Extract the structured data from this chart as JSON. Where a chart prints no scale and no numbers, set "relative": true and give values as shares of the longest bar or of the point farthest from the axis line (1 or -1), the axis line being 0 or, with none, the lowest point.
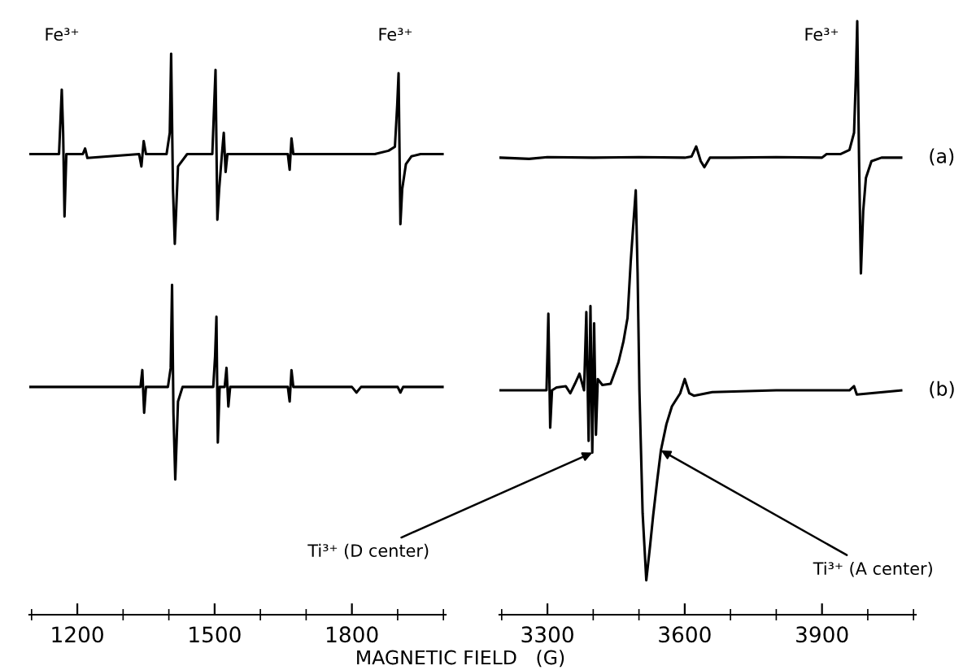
{
  "chart_data": [
    {
      "type": "line",
      "relative": true,
      "xlabel": "MAGNETIC FIELD   (G)",
      "tick_labels": "x",
      "xlim": [
        1095,
        2005
      ],
      "xticks": [
        {
          "value": 1100,
          "label": null
        },
        1200,
        {
          "value": 1300,
          "label": null
        },
        {
          "value": 1400,
          "label": null
        },
        1500,
        {
          "value": 1600,
          "label": null
        },
        {
          "value": 1700,
          "label": null
        },
        1800,
        {
          "value": 1900,
          "label": null
        },
        {
          "value": 2000,
          "label": null
        }
      ],
      "series": [
        {
          "color": "#000000",
          "x": [
            1095,
            1160,
            1166,
            1169,
            1172,
            1176,
            1185,
            1212,
            1217,
            1222,
            1335,
            1340,
            1345,
            1350,
            1395,
            1402,
            1405,
            1409,
            1413,
            1420,
            1440,
            1495,
            1499,
            1502,
            1506,
            1510,
            1516,
            1520,
            1524,
            1528,
            1660,
            1664,
            1668,
            1672,
            1850,
            1880,
            1894,
            1899,
            1902,
            1906,
            1910,
            1918,
            1930,
            1950,
            1998
          ],
          "values": [
            0.821,
            0.821,
            0.936,
            0.859,
            0.71,
            0.821,
            0.821,
            0.821,
            0.831,
            0.814,
            0.821,
            0.799,
            0.844,
            0.821,
            0.821,
            0.859,
            1.0,
            0.759,
            0.661,
            0.799,
            0.821,
            0.821,
            0.908,
            0.971,
            0.704,
            0.759,
            0.821,
            0.859,
            0.789,
            0.821,
            0.821,
            0.793,
            0.849,
            0.821,
            0.821,
            0.827,
            0.834,
            0.908,
            0.965,
            0.696,
            0.759,
            0.803,
            0.817,
            0.821,
            0.821
          ]
        },
        {
          "color": "#000000",
          "x": [
            1095,
            1338,
            1342,
            1346,
            1350,
            1398,
            1404,
            1407,
            1410,
            1414,
            1420,
            1430,
            1497,
            1501,
            1504,
            1507,
            1511,
            1522,
            1526,
            1530,
            1534,
            1660,
            1664,
            1668,
            1672,
            1800,
            1810,
            1820,
            1900,
            1906,
            1912,
            1998
          ],
          "values": [
            0.406,
            0.406,
            0.436,
            0.36,
            0.406,
            0.406,
            0.44,
            0.588,
            0.36,
            0.241,
            0.38,
            0.406,
            0.406,
            0.46,
            0.531,
            0.307,
            0.406,
            0.406,
            0.44,
            0.371,
            0.406,
            0.406,
            0.38,
            0.436,
            0.406,
            0.406,
            0.396,
            0.406,
            0.406,
            0.396,
            0.406,
            0.406
          ]
        }
      ],
      "annotations": [
        "Fe³⁺",
        "Fe³⁺"
      ]
    },
    {
      "type": "line",
      "relative": true,
      "tick_labels": "x",
      "xlim": [
        3195,
        4105
      ],
      "xticks": [
        {
          "value": 3200,
          "label": null
        },
        3300,
        {
          "value": 3400,
          "label": null
        },
        {
          "value": 3500,
          "label": null
        },
        3600,
        {
          "value": 3700,
          "label": null
        },
        {
          "value": 3800,
          "label": null
        },
        3900,
        {
          "value": 4000,
          "label": null
        },
        {
          "value": 4100,
          "label": null
        }
      ],
      "series": [
        {
          "name": "(a)",
          "color": "#000000",
          "x": [
            3197,
            3260,
            3300,
            3400,
            3500,
            3600,
            3615,
            3625,
            3635,
            3643,
            3655,
            3700,
            3800,
            3900,
            3910,
            3940,
            3960,
            3970,
            3974,
            3977,
            3981,
            3985,
            3990,
            3996,
            4008,
            4030,
            4073
          ],
          "values": [
            0.77,
            0.768,
            0.771,
            0.77,
            0.771,
            0.77,
            0.772,
            0.789,
            0.764,
            0.754,
            0.77,
            0.77,
            0.771,
            0.77,
            0.776,
            0.776,
            0.783,
            0.812,
            0.906,
            1.0,
            0.764,
            0.575,
            0.68,
            0.736,
            0.764,
            0.77,
            0.77
          ]
        },
        {
          "name": "(b)",
          "color": "#000000",
          "x": [
            3197,
            3290,
            3298,
            3302,
            3306,
            3310,
            3320,
            3340,
            3350,
            3360,
            3370,
            3380,
            3385,
            3390,
            3394,
            3398,
            3402,
            3406,
            3410,
            3420,
            3438,
            3455,
            3466,
            3475,
            3482,
            3488,
            3493,
            3497,
            3501,
            3508,
            3516,
            3524,
            3531,
            3540,
            3548,
            3560,
            3572,
            3590,
            3600,
            3610,
            3620,
            3660,
            3800,
            3960,
            3970,
            3976,
            4073
          ],
          "values": [
            0.378,
            0.378,
            0.378,
            0.507,
            0.315,
            0.378,
            0.383,
            0.385,
            0.373,
            0.389,
            0.406,
            0.378,
            0.51,
            0.293,
            0.52,
            0.273,
            0.491,
            0.303,
            0.397,
            0.387,
            0.389,
            0.425,
            0.46,
            0.5,
            0.595,
            0.661,
            0.715,
            0.576,
            0.378,
            0.171,
            0.058,
            0.114,
            0.167,
            0.227,
            0.277,
            0.321,
            0.351,
            0.373,
            0.397,
            0.373,
            0.369,
            0.375,
            0.378,
            0.378,
            0.385,
            0.371,
            0.378
          ]
        }
      ],
      "annotations": [
        "Fe³⁺",
        {
          "text": "Ti³⁺ (D center)",
          "x": 3398,
          "y": 0.273
        },
        {
          "text": "Ti³⁺ (A center)",
          "x": 3548,
          "y": 0.277
        }
      ]
    }
  ]
}
